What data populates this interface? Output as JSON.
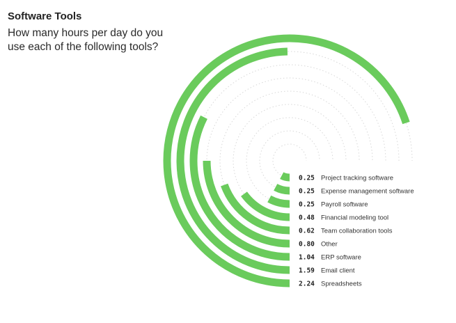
{
  "title": "Software Tools",
  "subtitle": "How many hours per day do you use each of the following tools?",
  "colors": {
    "bar": "#6acb5c",
    "guide": "#d7d7d7"
  },
  "chart_data": {
    "type": "radial-bar",
    "title": "Software Tools",
    "subtitle": "How many hours per day do you use each of the following tools?",
    "max_hours": 2.4,
    "categories": [
      "Project tracking software",
      "Expense management software",
      "Payroll software",
      "Financial modeling tool",
      "Team collaboration tools",
      "Other",
      "ERP software",
      "Email client",
      "Spreadsheets"
    ],
    "values": [
      0.25,
      0.25,
      0.25,
      0.48,
      0.62,
      0.8,
      1.04,
      1.59,
      2.24
    ],
    "value_labels": [
      "0.25",
      "0.25",
      "0.25",
      "0.48",
      "0.62",
      "0.80",
      "1.04",
      "1.59",
      "2.24"
    ]
  }
}
